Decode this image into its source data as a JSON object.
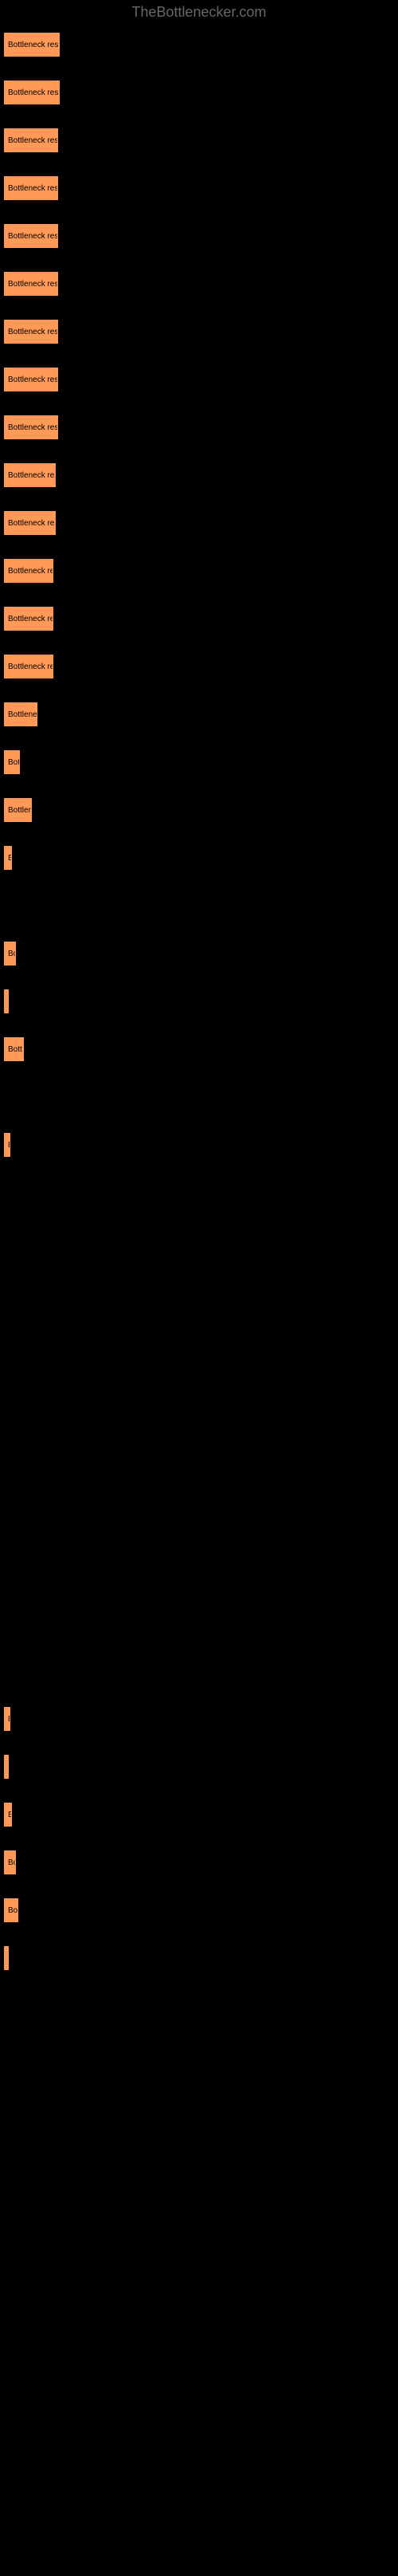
{
  "header": {
    "text": "TheBottlenecker.com"
  },
  "chart": {
    "type": "bar",
    "bar_color": "#ff9955",
    "background_color": "#000000",
    "text_color": "#000000",
    "font_size": 10,
    "bars": [
      {
        "label": "Bottleneck result",
        "width": 70
      },
      {
        "label": "Bottleneck result",
        "width": 70
      },
      {
        "label": "Bottleneck resu",
        "width": 68
      },
      {
        "label": "Bottleneck resu",
        "width": 68
      },
      {
        "label": "Bottleneck resu",
        "width": 68
      },
      {
        "label": "Bottleneck resu",
        "width": 68
      },
      {
        "label": "Bottleneck resu",
        "width": 68
      },
      {
        "label": "Bottleneck resu",
        "width": 68
      },
      {
        "label": "Bottleneck resu",
        "width": 68
      },
      {
        "label": "Bottleneck res",
        "width": 65
      },
      {
        "label": "Bottleneck res",
        "width": 65
      },
      {
        "label": "Bottleneck re",
        "width": 62
      },
      {
        "label": "Bottleneck re",
        "width": 62
      },
      {
        "label": "Bottleneck re",
        "width": 62
      },
      {
        "label": "Bottlene",
        "width": 42
      },
      {
        "label": "Bot",
        "width": 20
      },
      {
        "label": "Bottlen",
        "width": 35
      },
      {
        "label": "B",
        "width": 10
      },
      {
        "label": "",
        "width": 0
      },
      {
        "label": "Bo",
        "width": 15
      },
      {
        "label": "",
        "width": 3
      },
      {
        "label": "Bott",
        "width": 25
      },
      {
        "label": "",
        "width": 0
      },
      {
        "label": "B",
        "width": 8
      },
      {
        "label": "",
        "width": 0
      },
      {
        "label": "",
        "width": 0
      },
      {
        "label": "",
        "width": 0
      },
      {
        "label": "",
        "width": 0
      },
      {
        "label": "",
        "width": 0
      },
      {
        "label": "",
        "width": 0
      },
      {
        "label": "",
        "width": 0
      },
      {
        "label": "",
        "width": 0
      },
      {
        "label": "",
        "width": 0
      },
      {
        "label": "",
        "width": 0
      },
      {
        "label": "",
        "width": 0
      },
      {
        "label": "B",
        "width": 8
      },
      {
        "label": "",
        "width": 3
      },
      {
        "label": "B",
        "width": 10
      },
      {
        "label": "Bo",
        "width": 15
      },
      {
        "label": "Bo",
        "width": 18
      },
      {
        "label": "",
        "width": 3
      },
      {
        "label": "",
        "width": 0
      },
      {
        "label": "",
        "width": 0
      },
      {
        "label": "",
        "width": 0
      },
      {
        "label": "",
        "width": 0
      },
      {
        "label": "",
        "width": 0
      },
      {
        "label": "",
        "width": 0
      },
      {
        "label": "",
        "width": 0
      },
      {
        "label": "",
        "width": 0
      },
      {
        "label": "",
        "width": 0
      },
      {
        "label": "",
        "width": 0
      },
      {
        "label": "",
        "width": 0
      },
      {
        "label": "",
        "width": 0
      }
    ]
  }
}
